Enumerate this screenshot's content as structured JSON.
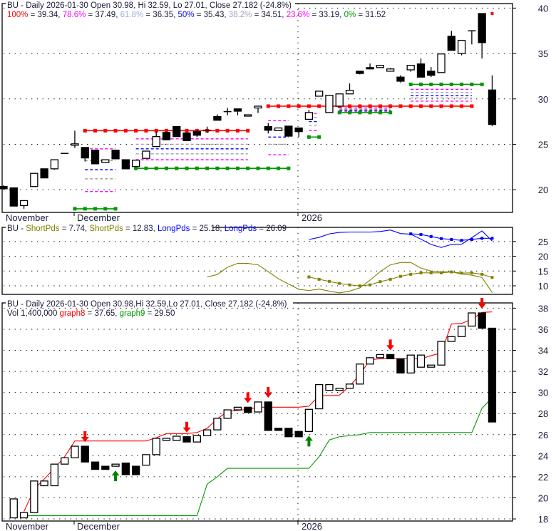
{
  "symbol": "BU",
  "month_labels": [
    "November",
    "December",
    "2026"
  ],
  "chart_data": [
    {
      "panel": "price",
      "type": "candlestick",
      "title": "BU - Daily 2026-01-30 Open 30.98, Hi 32.59, Lo 27.01, Close 27.182 (-24.8%)",
      "legend": [
        {
          "label": "100%",
          "value": "39.34",
          "color": "#ff0000"
        },
        {
          "label": "78.6%",
          "value": "37.49",
          "color": "#ff00ff"
        },
        {
          "label": "61.8%",
          "value": "36.35",
          "color": "#9fb0dc"
        },
        {
          "label": "50%",
          "value": "35.43",
          "color": "#0000ff"
        },
        {
          "label": "38.2%",
          "value": "34.51",
          "color": "#a0a0c4"
        },
        {
          "label": "23.6%",
          "value": "33.19",
          "color": "#ff00ff"
        },
        {
          "label": "0%",
          "value": "31.52",
          "color": "#009900"
        }
      ],
      "ylim": [
        17.5,
        40.5
      ],
      "yticks": [
        20,
        25,
        30,
        35,
        40
      ],
      "grid": true,
      "ohlc": [
        [
          20.35,
          20.5,
          20.1,
          20.1
        ],
        [
          20.2,
          20.2,
          18.2,
          18.2
        ],
        [
          18.25,
          18.8,
          17.9,
          18.8
        ],
        [
          20.35,
          21.8,
          20.35,
          21.8
        ],
        [
          22.3,
          22.3,
          21.3,
          21.3
        ],
        [
          22.3,
          23.3,
          22.2,
          23.3
        ],
        [
          24.0,
          24.0,
          24.0,
          24.0
        ],
        [
          24.9,
          26.5,
          24.6,
          25.05
        ],
        [
          24.65,
          24.65,
          23.1,
          23.5
        ],
        [
          24.35,
          24.35,
          22.85,
          22.85
        ],
        [
          23.0,
          23.3,
          23.0,
          23.3
        ],
        [
          24.35,
          24.35,
          23.4,
          23.4
        ],
        [
          23.3,
          23.3,
          22.3,
          22.3
        ],
        [
          22.55,
          23.25,
          22.55,
          23.25
        ],
        [
          23.45,
          24.25,
          23.45,
          24.25
        ],
        [
          24.75,
          26.4,
          24.75,
          25.85
        ],
        [
          26.3,
          26.3,
          25.5,
          25.5
        ],
        [
          26.95,
          26.95,
          25.85,
          25.85
        ],
        [
          26.25,
          26.25,
          25.4,
          25.4
        ],
        [
          26.4,
          26.6,
          25.8,
          26.0
        ],
        [
          26.55,
          26.95,
          26.25,
          26.55
        ],
        [
          28.05,
          28.3,
          27.65,
          27.65
        ],
        [
          28.6,
          29.0,
          28.2,
          28.6
        ],
        [
          28.9,
          28.9,
          28.2,
          28.65
        ],
        [
          28.1,
          28.25,
          28.1,
          28.25
        ],
        [
          29.0,
          29.2,
          28.45,
          29.2
        ],
        [
          26.95,
          27.35,
          26.2,
          26.55
        ],
        [
          26.5,
          26.8,
          26.5,
          26.8
        ],
        [
          27.0,
          27.0,
          25.9,
          25.9
        ],
        [
          26.8,
          26.8,
          25.8,
          26.4
        ],
        [
          27.75,
          28.8,
          27.75,
          28.5
        ],
        [
          30.3,
          30.85,
          30.3,
          30.85
        ],
        [
          28.5,
          30.4,
          28.5,
          30.4
        ],
        [
          29.2,
          30.55,
          29.2,
          30.55
        ],
        [
          30.55,
          31.7,
          30.55,
          30.95
        ],
        [
          33.05,
          33.05,
          32.7,
          32.8
        ],
        [
          33.45,
          33.9,
          33.3,
          33.3
        ],
        [
          33.45,
          33.7,
          33.45,
          33.7
        ],
        [
          33.05,
          33.4,
          33.05,
          33.3
        ],
        [
          32.4,
          32.6,
          31.8,
          31.95
        ],
        [
          33.2,
          33.7,
          33.0,
          33.7
        ],
        [
          33.85,
          34.45,
          32.4,
          32.4
        ],
        [
          33.05,
          33.5,
          32.4,
          32.6
        ],
        [
          32.9,
          34.95,
          32.9,
          34.95
        ],
        [
          36.9,
          37.5,
          35.35,
          35.35
        ],
        [
          35.0,
          36.45,
          34.8,
          36.45
        ],
        [
          37.5,
          37.5,
          36.0,
          37.5
        ],
        [
          39.4,
          39.4,
          34.45,
          36.2
        ],
        [
          30.98,
          32.59,
          27.01,
          27.182
        ]
      ],
      "level_lines": [
        {
          "from": 8,
          "to": 24,
          "level": 26.5,
          "color": "#ff0000",
          "style": "marker"
        },
        {
          "from": 26,
          "to": 46,
          "level": 29.2,
          "color": "#ff0000",
          "style": "marker"
        },
        {
          "from": 7,
          "to": 11,
          "level": 17.9,
          "color": "#009900",
          "style": "marker"
        },
        {
          "from": 13,
          "to": 28,
          "level": 22.35,
          "color": "#009900",
          "style": "marker"
        },
        {
          "from": 30,
          "to": 31,
          "level": 25.8,
          "color": "#009900",
          "style": "marker"
        },
        {
          "from": 33,
          "to": 38,
          "level": 28.5,
          "color": "#009900",
          "style": "marker"
        },
        {
          "from": 40,
          "to": 47,
          "level": 31.6,
          "color": "#009900",
          "style": "marker"
        }
      ],
      "dashed_groups": [
        {
          "from": 8,
          "to": 11,
          "levels": [
            24.5,
            23.2,
            22.2,
            21.2,
            19.8
          ]
        },
        {
          "from": 13,
          "to": 24,
          "levels": [
            25.6,
            25.0,
            24.5,
            23.95,
            23.3
          ]
        },
        {
          "from": 26,
          "to": 28,
          "levels": [
            27.6,
            26.6,
            25.8,
            25.0,
            23.85
          ]
        },
        {
          "from": 30,
          "to": 31,
          "levels": [
            28.4,
            27.95,
            27.5,
            27.1,
            26.5
          ]
        },
        {
          "from": 33,
          "to": 38,
          "levels": [
            29.0,
            28.85,
            28.75,
            28.65,
            28.55
          ]
        },
        {
          "from": 40,
          "to": 46,
          "levels": [
            31.05,
            30.7,
            30.35,
            30.1,
            29.75
          ]
        }
      ],
      "dashed_colors": [
        "#ff00ff",
        "#a0a0a0",
        "#0000ff",
        "#a0a0a0",
        "#ff00ff"
      ],
      "marker_point": {
        "index": 48,
        "level": 39.4,
        "color": "#ff0000"
      }
    },
    {
      "panel": "indicator",
      "type": "line",
      "prefix": "BU - ",
      "legend": [
        {
          "label": "ShortPds",
          "value": "7.74",
          "color": "#808000"
        },
        {
          "label": "ShortPds",
          "value": "12.83",
          "color": "#808000"
        },
        {
          "label": "LongPds",
          "value": "25.18",
          "color": "#0000ff"
        },
        {
          "label": "LongPds",
          "value": "26.09",
          "color": "#0000ff"
        }
      ],
      "ylim": [
        7.1,
        29.8
      ],
      "yticks": [
        10,
        15,
        20,
        25
      ],
      "grid": true,
      "series": [
        {
          "name": "ShortPds",
          "start": 20,
          "markers": false,
          "color": "#808000",
          "values": [
            13.0,
            13.8,
            16.3,
            17.6,
            17.6,
            17.1,
            14.8,
            12.4,
            10.6,
            8.8,
            8.4,
            8.9,
            8.2,
            7.6,
            8.2,
            9.3,
            11.9,
            14.8,
            17.1,
            17.9,
            17.9,
            16.0,
            15.0,
            14.8,
            14.7,
            14.0,
            13.6,
            12.8,
            7.74
          ]
        },
        {
          "name": "ShortPds",
          "start": 30,
          "markers": true,
          "color": "#808000",
          "values": [
            13.0,
            12.2,
            11.5,
            10.8,
            10.3,
            10.0,
            10.3,
            11.4,
            12.2,
            13.2,
            13.9,
            14.4,
            14.4,
            14.4,
            14.7,
            14.3,
            14.4,
            13.9,
            12.83
          ]
        },
        {
          "name": "LongPds",
          "start": 30,
          "markers": false,
          "color": "#0000ff",
          "values": [
            25.7,
            26.4,
            27.6,
            28.1,
            28.2,
            28.2,
            28.2,
            28.4,
            28.9,
            27.7,
            27.5,
            25.8,
            24.0,
            23.0,
            24.0,
            24.1,
            26.3,
            28.6,
            25.18
          ]
        },
        {
          "name": "LongPds",
          "start": 40,
          "markers": true,
          "color": "#0000ff",
          "values": [
            27.6,
            27.4,
            26.7,
            26.0,
            25.7,
            25.4,
            25.7,
            26.1,
            26.09
          ]
        }
      ]
    },
    {
      "panel": "signals",
      "type": "candlestick",
      "title": "BU - Daily 2026-01-30 Open 30.98,Hi 32.59,Lo 27.01, Close 27.182 (-24.8%)",
      "volume_text": "Vol 1,400,000",
      "legend": [
        {
          "label": "graph8",
          "value": "37.65",
          "color": "#ff0000"
        },
        {
          "label": "graph9",
          "value": "29.50",
          "color": "#009900"
        }
      ],
      "ylim": [
        17.8,
        38.5
      ],
      "yticks": [
        18,
        20,
        22,
        24,
        26,
        28,
        30,
        32,
        34,
        36,
        38
      ],
      "grid": true,
      "start": 1,
      "open_close": [
        [
          18.1,
          19.9
        ],
        [
          18.1,
          18.6
        ],
        [
          18.6,
          21.6
        ],
        [
          21.15,
          21.6
        ],
        [
          21.15,
          23.2
        ],
        [
          23.2,
          23.8
        ],
        [
          23.8,
          24.9
        ],
        [
          24.9,
          23.4
        ],
        [
          23.4,
          22.7
        ],
        [
          23.0,
          22.7
        ],
        [
          23.0,
          23.2
        ],
        [
          23.3,
          22.2
        ],
        [
          23.0,
          22.2
        ],
        [
          23.1,
          24.1
        ],
        [
          24.1,
          25.65
        ],
        [
          25.45,
          25.65
        ],
        [
          25.45,
          25.85
        ],
        [
          25.8,
          25.3
        ],
        [
          25.3,
          25.9
        ],
        [
          25.9,
          26.45
        ],
        [
          26.45,
          27.55
        ],
        [
          27.55,
          28.35
        ],
        [
          28.35,
          28.6
        ],
        [
          28.6,
          28.1
        ],
        [
          28.15,
          29.1
        ],
        [
          29.1,
          26.4
        ],
        [
          26.6,
          26.4
        ],
        [
          26.6,
          25.8
        ],
        [
          26.3,
          25.8
        ],
        [
          26.3,
          28.4
        ],
        [
          28.45,
          30.75
        ],
        [
          30.2,
          30.75
        ],
        [
          30.2,
          30.4
        ],
        [
          30.4,
          30.8
        ],
        [
          30.8,
          32.7
        ],
        [
          32.7,
          33.3
        ],
        [
          33.3,
          33.6
        ],
        [
          33.6,
          33.2
        ],
        [
          33.2,
          31.85
        ],
        [
          31.85,
          33.55
        ],
        [
          32.4,
          33.55
        ],
        [
          32.4,
          32.6
        ],
        [
          32.6,
          34.85
        ],
        [
          34.85,
          35.3
        ],
        [
          35.3,
          36.3
        ],
        [
          36.3,
          37.55
        ],
        [
          37.55,
          36.1
        ],
        [
          36.1,
          27.2
        ]
      ],
      "series": [
        {
          "name": "graph8",
          "start": 2,
          "color": "#ff0000",
          "values": [
            18.7,
            20.8,
            21.8,
            22.8,
            23.9,
            25.4,
            25.4,
            25.4,
            25.4,
            25.4,
            25.4,
            25.4,
            25.4,
            25.7,
            26.1,
            26.1,
            26.1,
            26.2,
            26.6,
            27.5,
            28.2,
            28.3,
            28.4,
            28.6,
            28.6,
            28.6,
            28.6,
            28.6,
            28.7,
            29.7,
            29.7,
            29.75,
            30.6,
            31.7,
            33.1,
            33.2,
            33.2,
            33.2,
            33.2,
            33.2,
            33.5,
            33.75,
            36.5,
            36.55,
            36.95,
            37.6,
            37.65
          ]
        },
        {
          "name": "graph9",
          "start": 2,
          "color": "#009900",
          "values": [
            18.3,
            18.3,
            18.3,
            18.3,
            18.3,
            18.3,
            18.3,
            18.3,
            18.3,
            18.3,
            18.3,
            18.3,
            18.3,
            18.3,
            18.3,
            18.3,
            18.3,
            18.3,
            21.3,
            22.0,
            22.8,
            22.8,
            22.8,
            22.8,
            22.8,
            22.8,
            22.8,
            22.8,
            22.8,
            23.9,
            25.5,
            25.8,
            25.9,
            26.0,
            26.2,
            26.2,
            26.2,
            26.2,
            26.2,
            26.2,
            26.2,
            26.2,
            26.2,
            26.2,
            26.2,
            28.5,
            29.5
          ]
        }
      ],
      "sell_signals": [
        8,
        18,
        24,
        26,
        38,
        47
      ],
      "buy_signals": [
        11,
        30
      ],
      "signal_colors": {
        "sell": "#ff0000",
        "buy": "#008000"
      }
    }
  ]
}
